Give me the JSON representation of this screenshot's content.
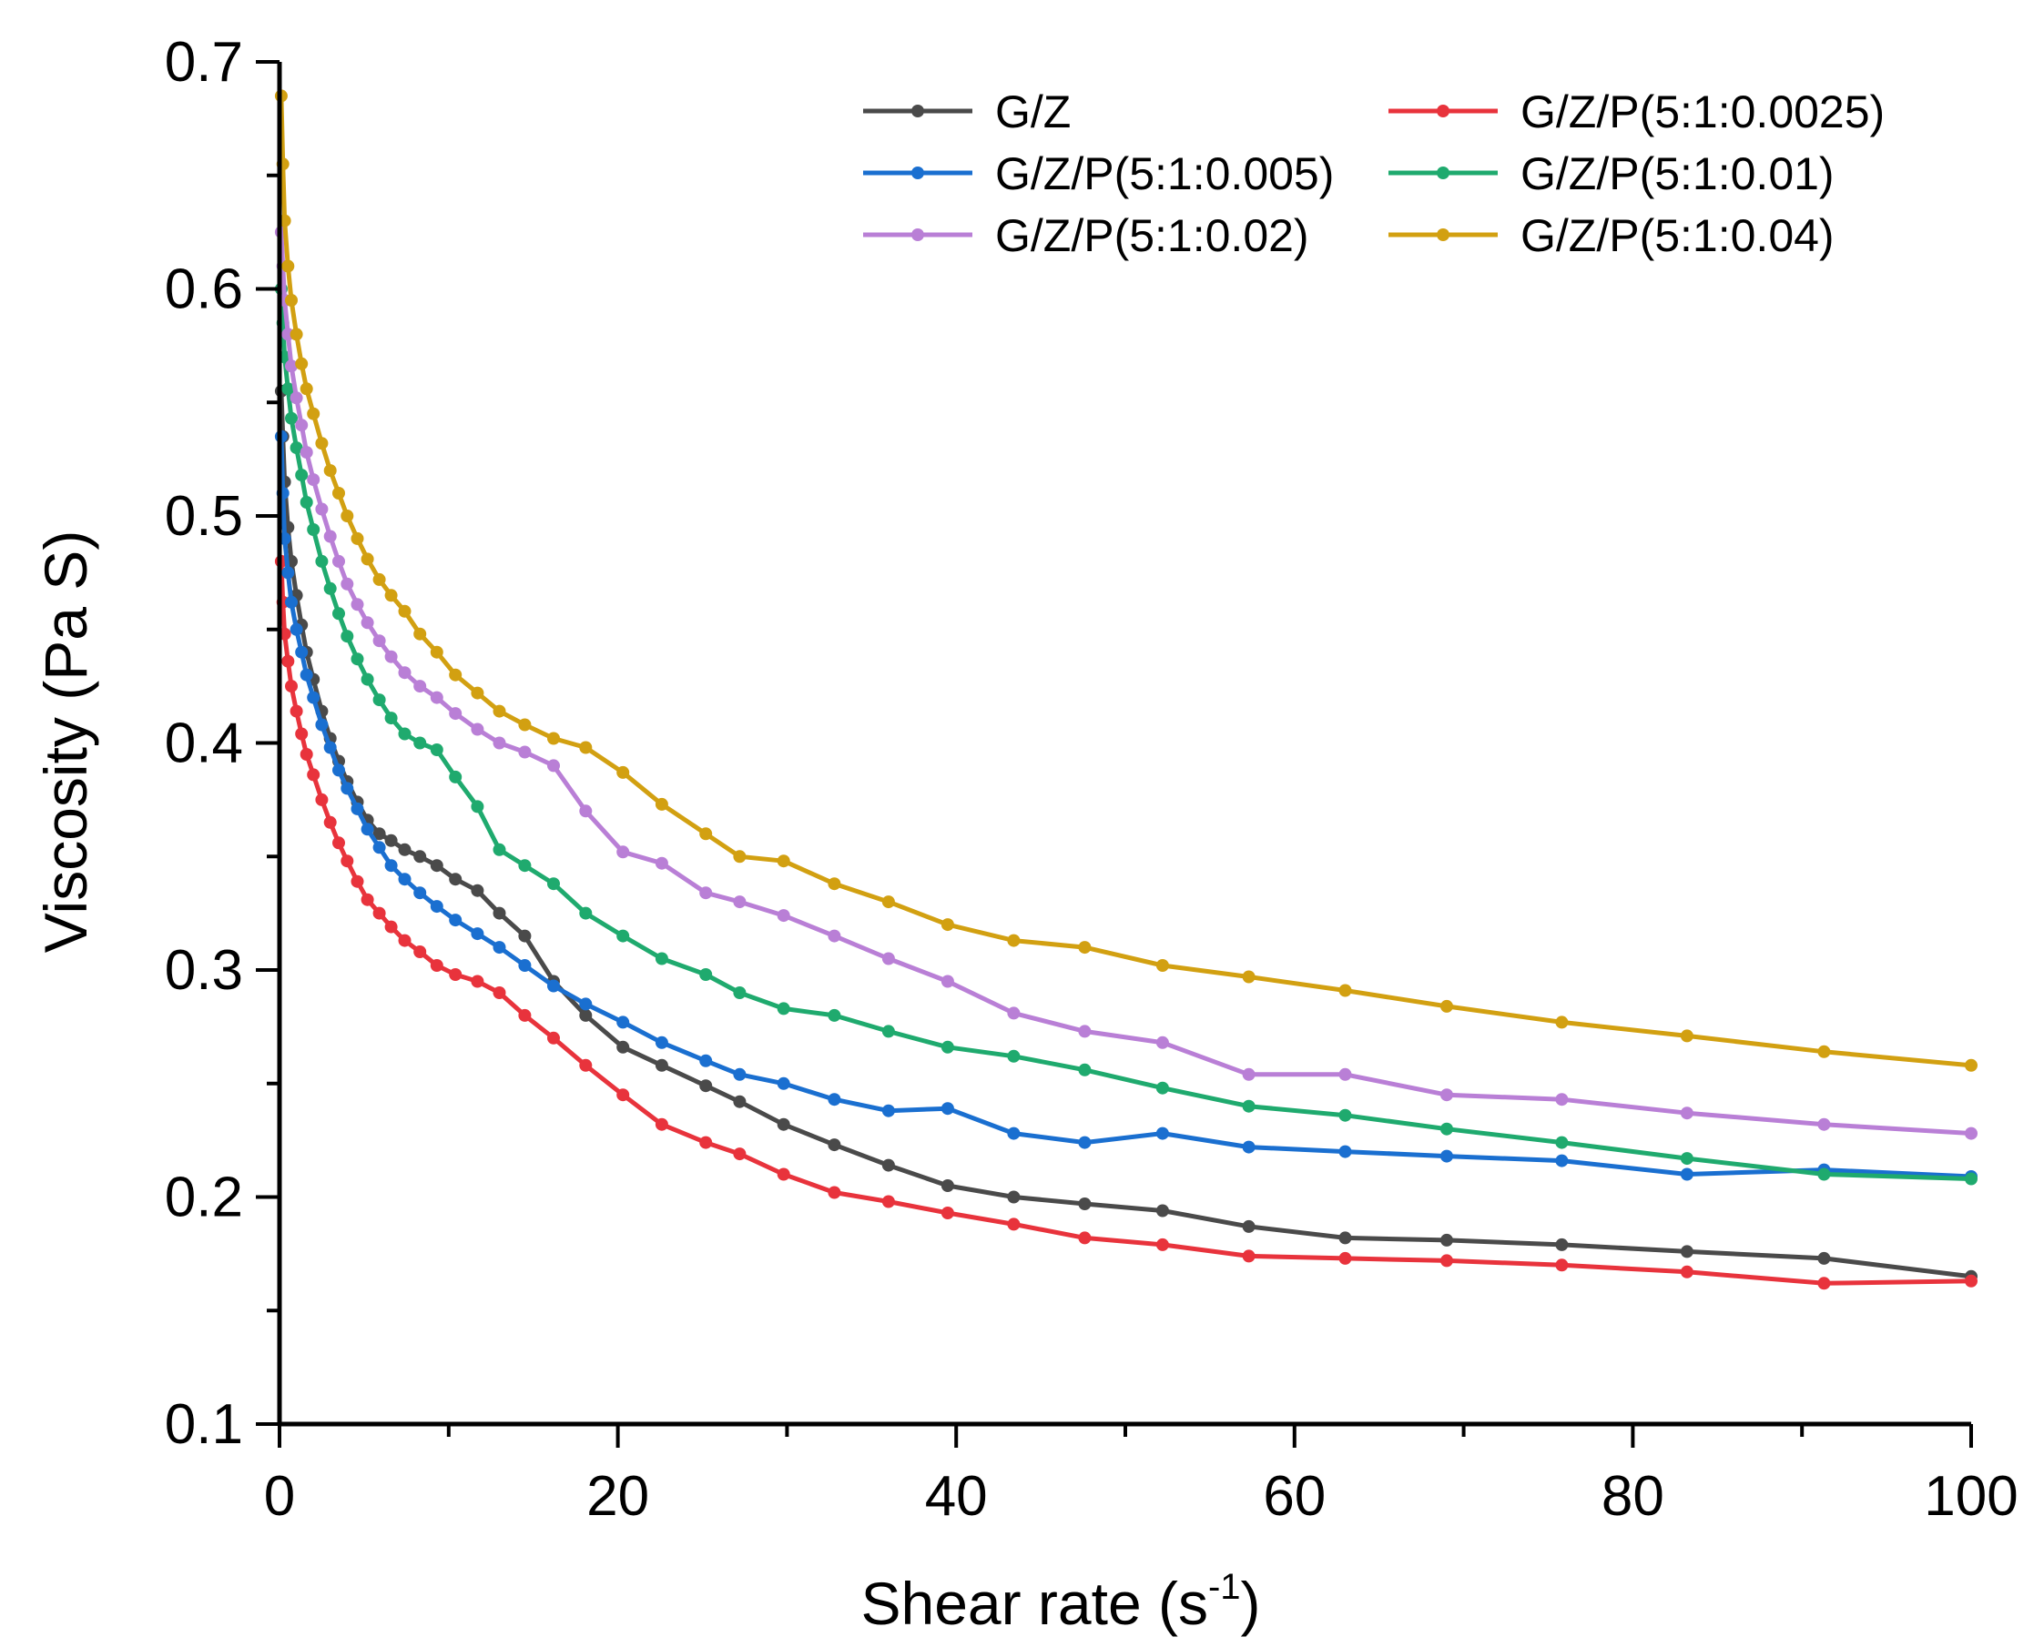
{
  "chart_data": {
    "type": "line",
    "title": "",
    "xlabel": "Shear rate (s",
    "xlabel_sup": "-1",
    "xlabel_close": ")",
    "ylabel": "Viscosity (Pa S)",
    "xlim": [
      0,
      100
    ],
    "ylim": [
      0.1,
      0.7
    ],
    "xticks": [
      0,
      20,
      40,
      60,
      80,
      100
    ],
    "xtick_labels": [
      "0",
      "20",
      "40",
      "60",
      "80",
      "100"
    ],
    "yticks": [
      0.1,
      0.2,
      0.3,
      0.4,
      0.5,
      0.6,
      0.7
    ],
    "ytick_labels": [
      "0.1",
      "0.2",
      "0.3",
      "0.4",
      "0.5",
      "0.6",
      "0.7"
    ],
    "grid": false,
    "legend_position": "top-right",
    "x": [
      0.1,
      0.2,
      0.3,
      0.5,
      0.7,
      1.0,
      1.3,
      1.6,
      2.0,
      2.5,
      3.0,
      3.5,
      4.0,
      4.6,
      5.2,
      5.9,
      6.6,
      7.4,
      8.3,
      9.3,
      10.4,
      11.7,
      13.0,
      14.5,
      16.2,
      18.1,
      20.3,
      22.6,
      25.2,
      27.2,
      29.8,
      32.8,
      36.0,
      39.5,
      43.4,
      47.6,
      52.2,
      57.3,
      63.0,
      69.0,
      75.8,
      83.2,
      91.3,
      100.0
    ],
    "series": [
      {
        "name": "G/Z",
        "color": "#4a4a4a",
        "values": [
          0.555,
          0.535,
          0.515,
          0.495,
          0.48,
          0.465,
          0.452,
          0.44,
          0.428,
          0.414,
          0.402,
          0.392,
          0.383,
          0.374,
          0.366,
          0.36,
          0.357,
          0.353,
          0.35,
          0.346,
          0.34,
          0.335,
          0.325,
          0.315,
          0.295,
          0.28,
          0.266,
          0.258,
          0.249,
          0.242,
          0.232,
          0.223,
          0.214,
          0.205,
          0.2,
          0.197,
          0.194,
          0.187,
          0.182,
          0.181,
          0.179,
          0.176,
          0.173,
          0.165
        ]
      },
      {
        "name": "G/Z/P(5:1:0.0025)",
        "color": "#e8333c",
        "values": [
          0.48,
          0.462,
          0.448,
          0.436,
          0.425,
          0.414,
          0.404,
          0.395,
          0.386,
          0.375,
          0.365,
          0.356,
          0.348,
          0.339,
          0.331,
          0.325,
          0.319,
          0.313,
          0.308,
          0.302,
          0.298,
          0.295,
          0.29,
          0.28,
          0.27,
          0.258,
          0.245,
          0.232,
          0.224,
          0.219,
          0.21,
          0.202,
          0.198,
          0.193,
          0.188,
          0.182,
          0.179,
          0.174,
          0.173,
          0.172,
          0.17,
          0.167,
          0.162,
          0.163
        ]
      },
      {
        "name": "G/Z/P(5:1:0.005)",
        "color": "#1a6fd0",
        "values": [
          0.535,
          0.51,
          0.49,
          0.475,
          0.462,
          0.45,
          0.44,
          0.43,
          0.42,
          0.408,
          0.398,
          0.388,
          0.38,
          0.371,
          0.362,
          0.354,
          0.346,
          0.34,
          0.334,
          0.328,
          0.322,
          0.316,
          0.31,
          0.302,
          0.293,
          0.285,
          0.277,
          0.268,
          0.26,
          0.254,
          0.25,
          0.243,
          0.238,
          0.239,
          0.228,
          0.224,
          0.228,
          0.222,
          0.22,
          0.218,
          0.216,
          0.21,
          0.212,
          0.209
        ]
      },
      {
        "name": "G/Z/P(5:1:0.01)",
        "color": "#1faa6e",
        "values": [
          0.6,
          0.585,
          0.57,
          0.556,
          0.543,
          0.53,
          0.518,
          0.506,
          0.494,
          0.48,
          0.468,
          0.457,
          0.447,
          0.437,
          0.428,
          0.419,
          0.411,
          0.404,
          0.4,
          0.397,
          0.385,
          0.372,
          0.353,
          0.346,
          0.338,
          0.325,
          0.315,
          0.305,
          0.298,
          0.29,
          0.283,
          0.28,
          0.273,
          0.266,
          0.262,
          0.256,
          0.248,
          0.24,
          0.236,
          0.23,
          0.224,
          0.217,
          0.21,
          0.208
        ]
      },
      {
        "name": "G/Z/P(5:1:0.02)",
        "color": "#b97fd6",
        "values": [
          0.625,
          0.61,
          0.595,
          0.58,
          0.566,
          0.552,
          0.54,
          0.528,
          0.516,
          0.503,
          0.491,
          0.48,
          0.47,
          0.461,
          0.453,
          0.445,
          0.438,
          0.431,
          0.425,
          0.42,
          0.413,
          0.406,
          0.4,
          0.396,
          0.39,
          0.37,
          0.352,
          0.347,
          0.334,
          0.33,
          0.324,
          0.315,
          0.305,
          0.295,
          0.281,
          0.273,
          0.268,
          0.254,
          0.254,
          0.245,
          0.243,
          0.237,
          0.232,
          0.228
        ]
      },
      {
        "name": "G/Z/P(5:1:0.04)",
        "color": "#d2a011",
        "values": [
          0.685,
          0.655,
          0.63,
          0.61,
          0.595,
          0.58,
          0.567,
          0.556,
          0.545,
          0.532,
          0.52,
          0.51,
          0.5,
          0.49,
          0.481,
          0.472,
          0.465,
          0.458,
          0.448,
          0.44,
          0.43,
          0.422,
          0.414,
          0.408,
          0.402,
          0.398,
          0.387,
          0.373,
          0.36,
          0.35,
          0.348,
          0.338,
          0.33,
          0.32,
          0.313,
          0.31,
          0.302,
          0.297,
          0.291,
          0.284,
          0.277,
          0.271,
          0.264,
          0.258
        ]
      }
    ]
  }
}
